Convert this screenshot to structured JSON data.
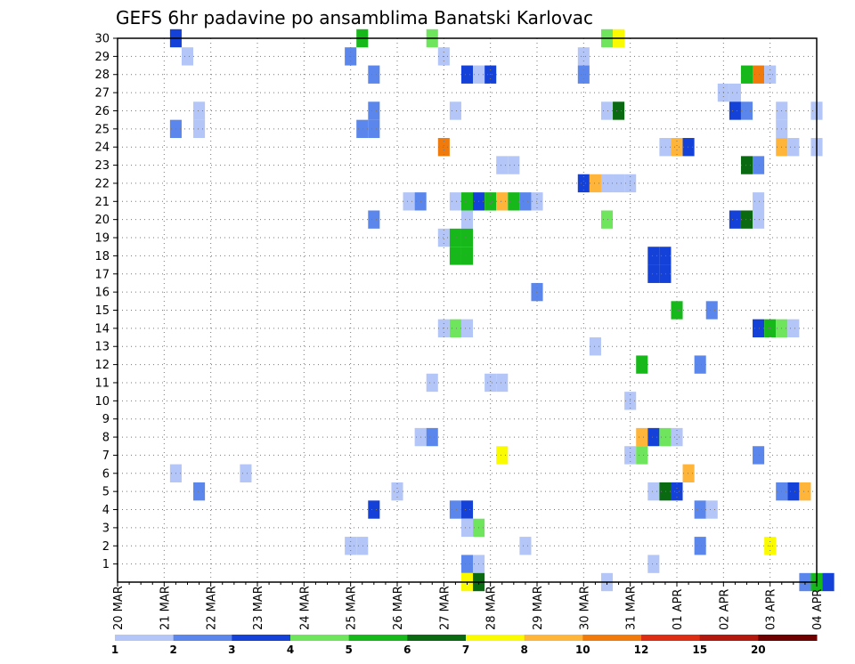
{
  "chart_data": {
    "type": "heatmap",
    "title": "GEFS 6hr padavine po ansamblima Banatski Karlovac",
    "xlabel": "",
    "ylabel": "",
    "x_ticks": [
      "20 MAR",
      "21 MAR",
      "22 MAR",
      "23 MAR",
      "24 MAR",
      "25 MAR",
      "26 MAR",
      "27 MAR",
      "28 MAR",
      "29 MAR",
      "30 MAR",
      "31 MAR",
      "01 APR",
      "02 APR",
      "03 APR",
      "04 APR"
    ],
    "y_ticks": [
      "1",
      "2",
      "3",
      "4",
      "5",
      "6",
      "7",
      "8",
      "9",
      "10",
      "11",
      "12",
      "13",
      "14",
      "15",
      "16",
      "17",
      "18",
      "19",
      "20",
      "21",
      "22",
      "23",
      "24",
      "25",
      "26",
      "27",
      "28",
      "29",
      "30"
    ],
    "xlim_days": [
      0,
      15
    ],
    "ylim_members": [
      0,
      30
    ],
    "grid": true,
    "legend": {
      "placement": "bottom",
      "labels": [
        "1",
        "2",
        "3",
        "4",
        "5",
        "6",
        "7",
        "8",
        "10",
        "12",
        "15",
        "20"
      ],
      "colors": [
        "#b3c6f7",
        "#5b87ec",
        "#1441d7",
        "#6fe45d",
        "#17b81a",
        "#0a6a12",
        "#fbfb00",
        "#ffb43a",
        "#f07b0c",
        "#dd2e14",
        "#b2180e",
        "#6e0000"
      ]
    },
    "cells": [
      {
        "x": 1.25,
        "y": 30,
        "v": 3
      },
      {
        "x": 1.5,
        "y": 29,
        "v": 1
      },
      {
        "x": 5.25,
        "y": 30,
        "v": 5
      },
      {
        "x": 5,
        "y": 29,
        "v": 2
      },
      {
        "x": 6.75,
        "y": 30,
        "v": 4
      },
      {
        "x": 7,
        "y": 29,
        "v": 1
      },
      {
        "x": 10.5,
        "y": 30,
        "v": 4
      },
      {
        "x": 10.75,
        "y": 30,
        "v": 7
      },
      {
        "x": 10,
        "y": 29,
        "v": 1
      },
      {
        "x": 5.5,
        "y": 28,
        "v": 2
      },
      {
        "x": 7.5,
        "y": 28,
        "v": 3
      },
      {
        "x": 7.75,
        "y": 28,
        "v": 1
      },
      {
        "x": 8,
        "y": 28,
        "v": 3
      },
      {
        "x": 10,
        "y": 28,
        "v": 2
      },
      {
        "x": 13.5,
        "y": 28,
        "v": 5
      },
      {
        "x": 13.75,
        "y": 28,
        "v": 10
      },
      {
        "x": 14,
        "y": 28,
        "v": 1
      },
      {
        "x": 13.25,
        "y": 27,
        "v": 1
      },
      {
        "x": 13,
        "y": 27,
        "v": 1
      },
      {
        "x": 1.75,
        "y": 26,
        "v": 1
      },
      {
        "x": 5.5,
        "y": 26,
        "v": 2
      },
      {
        "x": 7.25,
        "y": 26,
        "v": 1
      },
      {
        "x": 10.5,
        "y": 26,
        "v": 1
      },
      {
        "x": 10.75,
        "y": 26,
        "v": 6
      },
      {
        "x": 13.25,
        "y": 26,
        "v": 3
      },
      {
        "x": 13.5,
        "y": 26,
        "v": 2
      },
      {
        "x": 14.25,
        "y": 26,
        "v": 1
      },
      {
        "x": 15,
        "y": 26,
        "v": 1
      },
      {
        "x": 1.25,
        "y": 25,
        "v": 2
      },
      {
        "x": 1.75,
        "y": 25,
        "v": 1
      },
      {
        "x": 5.25,
        "y": 25,
        "v": 2
      },
      {
        "x": 5.5,
        "y": 25,
        "v": 2
      },
      {
        "x": 14.25,
        "y": 25,
        "v": 1
      },
      {
        "x": 7,
        "y": 24,
        "v": 10
      },
      {
        "x": 11.75,
        "y": 24,
        "v": 1
      },
      {
        "x": 12,
        "y": 24,
        "v": 8
      },
      {
        "x": 12.25,
        "y": 24,
        "v": 3
      },
      {
        "x": 14.25,
        "y": 24,
        "v": 8
      },
      {
        "x": 14.5,
        "y": 24,
        "v": 1
      },
      {
        "x": 15,
        "y": 24,
        "v": 1
      },
      {
        "x": 8.25,
        "y": 23,
        "v": 1
      },
      {
        "x": 8.5,
        "y": 23,
        "v": 1
      },
      {
        "x": 13.5,
        "y": 23,
        "v": 6
      },
      {
        "x": 13.75,
        "y": 23,
        "v": 2
      },
      {
        "x": 10,
        "y": 22,
        "v": 3
      },
      {
        "x": 10.25,
        "y": 22,
        "v": 8
      },
      {
        "x": 10.5,
        "y": 22,
        "v": 1
      },
      {
        "x": 10.75,
        "y": 22,
        "v": 1
      },
      {
        "x": 11,
        "y": 22,
        "v": 1
      },
      {
        "x": 6.25,
        "y": 21,
        "v": 1
      },
      {
        "x": 6.5,
        "y": 21,
        "v": 2
      },
      {
        "x": 7.25,
        "y": 21,
        "v": 1
      },
      {
        "x": 7.5,
        "y": 21,
        "v": 5
      },
      {
        "x": 7.75,
        "y": 21,
        "v": 3
      },
      {
        "x": 8,
        "y": 21,
        "v": 5
      },
      {
        "x": 8.25,
        "y": 21,
        "v": 8
      },
      {
        "x": 8.5,
        "y": 21,
        "v": 5
      },
      {
        "x": 8.75,
        "y": 21,
        "v": 2
      },
      {
        "x": 9,
        "y": 21,
        "v": 1
      },
      {
        "x": 13.75,
        "y": 21,
        "v": 1
      },
      {
        "x": 5.5,
        "y": 20,
        "v": 2
      },
      {
        "x": 7.5,
        "y": 20,
        "v": 1
      },
      {
        "x": 10.5,
        "y": 20,
        "v": 4
      },
      {
        "x": 13.25,
        "y": 20,
        "v": 3
      },
      {
        "x": 13.5,
        "y": 20,
        "v": 6
      },
      {
        "x": 13.75,
        "y": 20,
        "v": 1
      },
      {
        "x": 7,
        "y": 19,
        "v": 1
      },
      {
        "x": 7.25,
        "y": 19,
        "v": 5
      },
      {
        "x": 7.5,
        "y": 19,
        "v": 5
      },
      {
        "x": 7.25,
        "y": 18,
        "v": 5
      },
      {
        "x": 7.5,
        "y": 18,
        "v": 5
      },
      {
        "x": 11.5,
        "y": 18,
        "v": 3
      },
      {
        "x": 11.75,
        "y": 18,
        "v": 3
      },
      {
        "x": 11.5,
        "y": 17,
        "v": 3
      },
      {
        "x": 11.75,
        "y": 17,
        "v": 3
      },
      {
        "x": 9,
        "y": 16,
        "v": 2
      },
      {
        "x": 12,
        "y": 15,
        "v": 5
      },
      {
        "x": 12.75,
        "y": 15,
        "v": 2
      },
      {
        "x": 7,
        "y": 14,
        "v": 1
      },
      {
        "x": 7.25,
        "y": 14,
        "v": 4
      },
      {
        "x": 7.5,
        "y": 14,
        "v": 1
      },
      {
        "x": 13.75,
        "y": 14,
        "v": 3
      },
      {
        "x": 14,
        "y": 14,
        "v": 5
      },
      {
        "x": 14.25,
        "y": 14,
        "v": 4
      },
      {
        "x": 14.5,
        "y": 14,
        "v": 1
      },
      {
        "x": 10.25,
        "y": 13,
        "v": 1
      },
      {
        "x": 11.25,
        "y": 12,
        "v": 5
      },
      {
        "x": 12.5,
        "y": 12,
        "v": 2
      },
      {
        "x": 6.75,
        "y": 11,
        "v": 1
      },
      {
        "x": 8,
        "y": 11,
        "v": 1
      },
      {
        "x": 8.25,
        "y": 11,
        "v": 1
      },
      {
        "x": 11,
        "y": 10,
        "v": 1
      },
      {
        "x": 6.5,
        "y": 8,
        "v": 1
      },
      {
        "x": 6.75,
        "y": 8,
        "v": 2
      },
      {
        "x": 11.25,
        "y": 8,
        "v": 8
      },
      {
        "x": 11.5,
        "y": 8,
        "v": 3
      },
      {
        "x": 11.75,
        "y": 8,
        "v": 4
      },
      {
        "x": 12,
        "y": 8,
        "v": 1
      },
      {
        "x": 8.25,
        "y": 7,
        "v": 7
      },
      {
        "x": 11,
        "y": 7,
        "v": 1
      },
      {
        "x": 11.25,
        "y": 7,
        "v": 4
      },
      {
        "x": 13.75,
        "y": 7,
        "v": 2
      },
      {
        "x": 1.25,
        "y": 6,
        "v": 1
      },
      {
        "x": 2.75,
        "y": 6,
        "v": 1
      },
      {
        "x": 12.25,
        "y": 6,
        "v": 8
      },
      {
        "x": 1.75,
        "y": 5,
        "v": 2
      },
      {
        "x": 6,
        "y": 5,
        "v": 1
      },
      {
        "x": 11.5,
        "y": 5,
        "v": 1
      },
      {
        "x": 11.75,
        "y": 5,
        "v": 6
      },
      {
        "x": 12,
        "y": 5,
        "v": 3
      },
      {
        "x": 14.25,
        "y": 5,
        "v": 2
      },
      {
        "x": 14.5,
        "y": 5,
        "v": 3
      },
      {
        "x": 14.75,
        "y": 5,
        "v": 8
      },
      {
        "x": 5.5,
        "y": 4,
        "v": 3
      },
      {
        "x": 7.25,
        "y": 4,
        "v": 2
      },
      {
        "x": 7.5,
        "y": 4,
        "v": 3
      },
      {
        "x": 12.5,
        "y": 4,
        "v": 2
      },
      {
        "x": 12.75,
        "y": 4,
        "v": 1
      },
      {
        "x": 7.5,
        "y": 3,
        "v": 1
      },
      {
        "x": 7.75,
        "y": 3,
        "v": 4
      },
      {
        "x": 5,
        "y": 2,
        "v": 1
      },
      {
        "x": 5.25,
        "y": 2,
        "v": 1
      },
      {
        "x": 8.75,
        "y": 2,
        "v": 1
      },
      {
        "x": 12.5,
        "y": 2,
        "v": 2
      },
      {
        "x": 14,
        "y": 2,
        "v": 7
      },
      {
        "x": 7.5,
        "y": 1,
        "v": 2
      },
      {
        "x": 7.75,
        "y": 1,
        "v": 1
      },
      {
        "x": 11.5,
        "y": 1,
        "v": 1
      },
      {
        "x": 7.5,
        "y": 0,
        "v": 7
      },
      {
        "x": 7.75,
        "y": 0,
        "v": 6
      },
      {
        "x": 10.5,
        "y": 0,
        "v": 1
      },
      {
        "x": 14.75,
        "y": 0,
        "v": 2
      },
      {
        "x": 15,
        "y": 0,
        "v": 5
      },
      {
        "x": 15.25,
        "y": 0,
        "v": 3
      }
    ]
  }
}
